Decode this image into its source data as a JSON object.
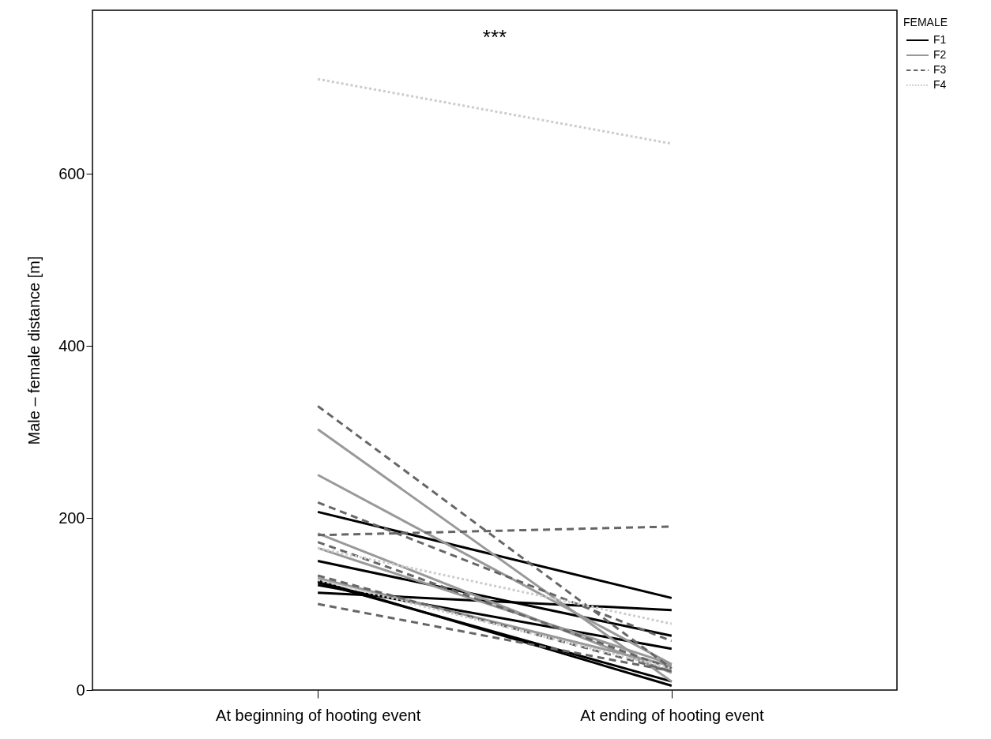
{
  "chart_data": {
    "type": "line",
    "ylabel": "Male – female distance [m]",
    "legend_title": "FEMALE",
    "legend": "top right",
    "grid": false,
    "marker": "none",
    "categories": [
      "At beginning of hooting event",
      "At ending of hooting event"
    ],
    "ylim": [
      0,
      790
    ],
    "yticks": [
      0,
      200,
      400,
      600
    ],
    "annotations": [
      "***"
    ],
    "series": [
      {
        "name": "F1",
        "color": "#000000",
        "line_style": "solid",
        "values": [
          207,
          107
        ]
      },
      {
        "color": "#000000",
        "line_style": "solid",
        "values": [
          150,
          63
        ]
      },
      {
        "color": "#000000",
        "line_style": "solid",
        "values": [
          125,
          10
        ]
      },
      {
        "color": "#000000",
        "line_style": "solid",
        "values": [
          122,
          48
        ]
      },
      {
        "color": "#000000",
        "line_style": "solid",
        "values": [
          113,
          93
        ]
      },
      {
        "color": "#000000",
        "line_style": "solid",
        "values": [
          127,
          5
        ]
      },
      {
        "name": "F2",
        "color": "#999999",
        "line_style": "solid",
        "values": [
          303,
          10
        ]
      },
      {
        "color": "#999999",
        "line_style": "solid",
        "values": [
          250,
          30
        ]
      },
      {
        "color": "#999999",
        "line_style": "solid",
        "values": [
          182,
          20
        ]
      },
      {
        "color": "#999999",
        "line_style": "solid",
        "values": [
          165,
          30
        ]
      },
      {
        "color": "#999999",
        "line_style": "solid",
        "values": [
          130,
          28
        ]
      },
      {
        "name": "F3",
        "color": "#666666",
        "line_style": "dashed",
        "values": [
          330,
          25
        ]
      },
      {
        "color": "#666666",
        "line_style": "dashed",
        "values": [
          218,
          57
        ]
      },
      {
        "color": "#666666",
        "line_style": "dashed",
        "values": [
          180,
          190
        ]
      },
      {
        "color": "#666666",
        "line_style": "dashed",
        "values": [
          172,
          25
        ]
      },
      {
        "color": "#666666",
        "line_style": "dashed",
        "values": [
          133,
          22
        ]
      },
      {
        "color": "#666666",
        "line_style": "dashed",
        "values": [
          100,
          22
        ]
      },
      {
        "name": "F4",
        "color": "#cccccc",
        "line_style": "dotted",
        "values": [
          710,
          635
        ]
      },
      {
        "color": "#cccccc",
        "line_style": "dotted",
        "values": [
          165,
          77
        ]
      },
      {
        "color": "#cccccc",
        "line_style": "dotted",
        "values": [
          128,
          25
        ]
      }
    ]
  }
}
